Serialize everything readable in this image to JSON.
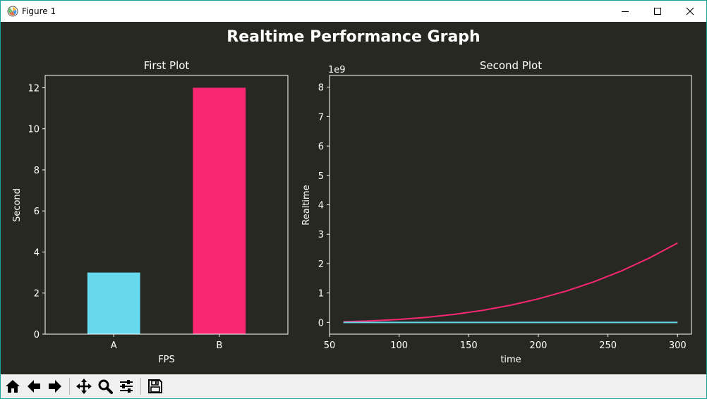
{
  "window": {
    "title": "Figure 1"
  },
  "figure": {
    "suptitle": "Realtime Performance Graph",
    "background": "#272822",
    "foreground": "#ffffff"
  },
  "chart_data": [
    {
      "type": "bar",
      "title": "First Plot",
      "xlabel": "FPS",
      "ylabel": "Second",
      "categories": [
        "A",
        "B"
      ],
      "values": [
        3,
        12
      ],
      "colors": [
        "#66d9ef",
        "#f92672"
      ],
      "ylim": [
        0,
        12.6
      ],
      "yticks": [
        0,
        2,
        4,
        6,
        8,
        10,
        12
      ],
      "grid": false
    },
    {
      "type": "line",
      "title": "Second Plot",
      "xlabel": "time",
      "ylabel": "Realtime",
      "offset_label": "1e9",
      "xlim": [
        50,
        310
      ],
      "ylim": [
        -0.4,
        8.4
      ],
      "xticks": [
        50,
        100,
        150,
        200,
        250,
        300
      ],
      "yticks": [
        0,
        1,
        2,
        3,
        4,
        5,
        6,
        7,
        8
      ],
      "grid": false,
      "series": [
        {
          "color": "#f92672",
          "x": [
            60,
            80,
            100,
            120,
            140,
            160,
            180,
            200,
            220,
            240,
            260,
            280,
            300
          ],
          "y": [
            0.022,
            0.0512,
            0.1,
            0.1728,
            0.2744,
            0.4096,
            0.5832,
            0.8,
            1.0648,
            1.3824,
            1.7576,
            2.1952,
            2.7
          ]
        },
        {
          "color": "#66d9ef",
          "x": [
            60,
            300
          ],
          "y": [
            0,
            0
          ]
        }
      ]
    }
  ],
  "toolbar": {
    "tools": [
      "home-icon",
      "back-icon",
      "forward-icon",
      "pan-icon",
      "zoom-icon",
      "configure-subplots-icon",
      "save-icon"
    ]
  }
}
